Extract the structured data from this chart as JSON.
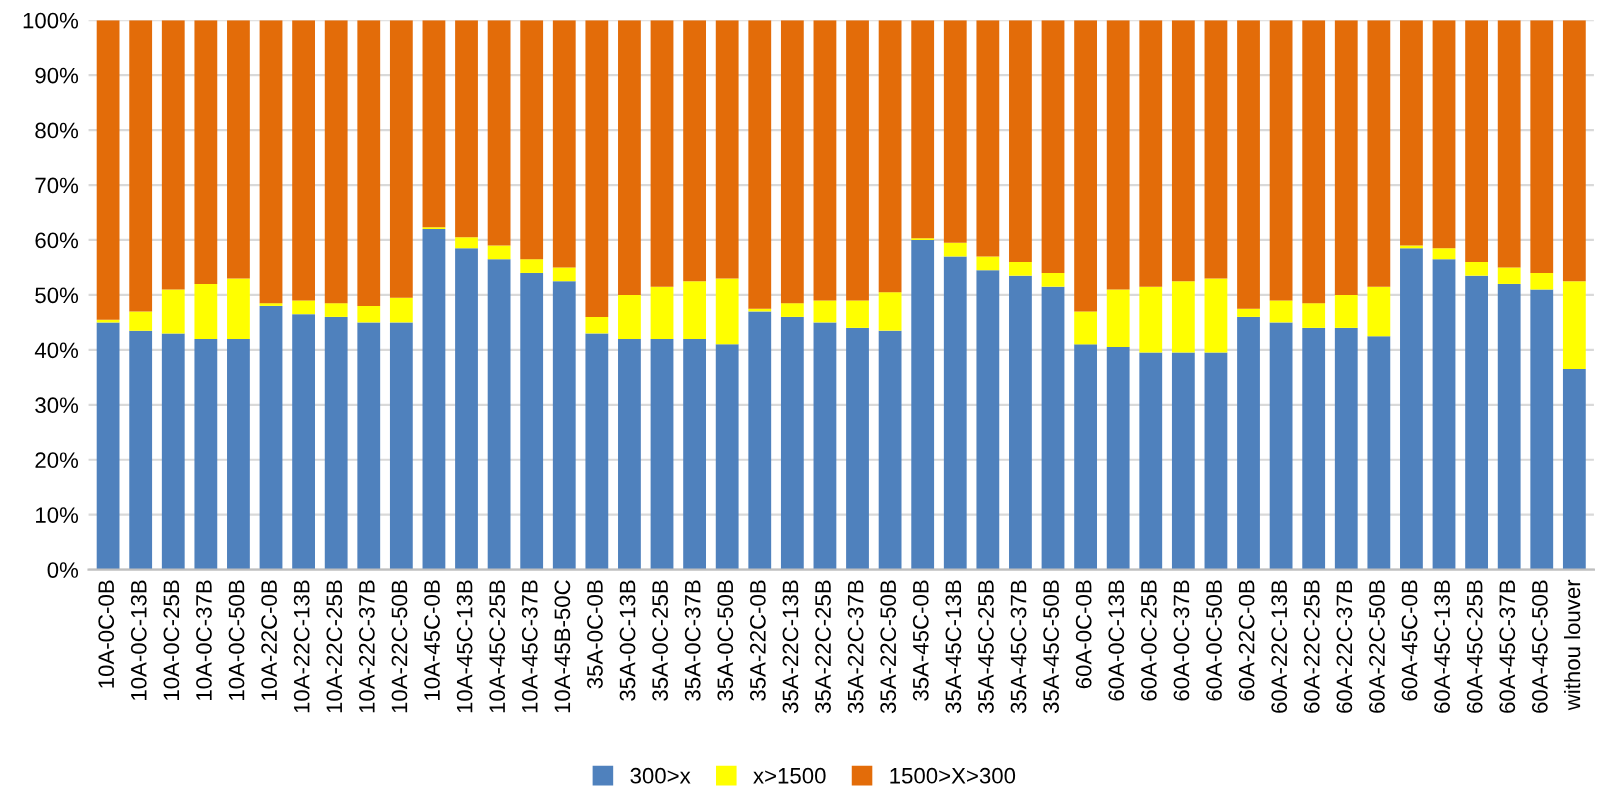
{
  "chart_data": {
    "type": "bar",
    "stacked": true,
    "categories": [
      "10A-0C-0B",
      "10A-0C-13B",
      "10A-0C-25B",
      "10A-0C-37B",
      "10A-0C-50B",
      "10A-22C-0B",
      "10A-22C-13B",
      "10A-22C-25B",
      "10A-22C-37B",
      "10A-22C-50B",
      "10A-45C-0B",
      "10A-45C-13B",
      "10A-45C-25B",
      "10A-45C-37B",
      "10A-45B-50C",
      "35A-0C-0B",
      "35A-0C-13B",
      "35A-0C-25B",
      "35A-0C-37B",
      "35A-0C-50B",
      "35A-22C-0B",
      "35A-22C-13B",
      "35A-22C-25B",
      "35A-22C-37B",
      "35A-22C-50B",
      "35A-45C-0B",
      "35A-45C-13B",
      "35A-45C-25B",
      "35A-45C-37B",
      "35A-45C-50B",
      "60A-0C-0B",
      "60A-0C-13B",
      "60A-0C-25B",
      "60A-0C-37B",
      "60A-0C-50B",
      "60A-22C-0B",
      "60A-22C-13B",
      "60A-22C-25B",
      "60A-22C-37B",
      "60A-22C-50B",
      "60A-45C-0B",
      "60A-45C-13B",
      "60A-45C-25B",
      "60A-45C-37B",
      "60A-45C-50B",
      "withou louver"
    ],
    "series": [
      {
        "name": "300>x",
        "color": "#4f81bd",
        "values": [
          45,
          43.5,
          43,
          42,
          42,
          48,
          46.5,
          46,
          45,
          45,
          62,
          58.5,
          56.5,
          54,
          52.5,
          43,
          42,
          42,
          42,
          41,
          47,
          46,
          45,
          44,
          43.5,
          60,
          57,
          54.5,
          53.5,
          51.5,
          41,
          40.5,
          39.5,
          39.5,
          39.5,
          46,
          45,
          44,
          44,
          42.5,
          58.5,
          56.5,
          53.5,
          52,
          51,
          36.5
        ]
      },
      {
        "name": "x>1500",
        "color": "#ffff00",
        "values": [
          0.5,
          3.5,
          8,
          10,
          11,
          0.5,
          2.5,
          2.5,
          3,
          4.5,
          0.3,
          2,
          2.5,
          2.5,
          2.5,
          3,
          8,
          9.5,
          10.5,
          12,
          0.5,
          2.5,
          4,
          5,
          7,
          0.3,
          2.5,
          2.5,
          2.5,
          2.5,
          6,
          10.5,
          12,
          13,
          13.5,
          1.5,
          4,
          4.5,
          6,
          9,
          0.5,
          2,
          2.5,
          3,
          3,
          16
        ]
      },
      {
        "name": "1500>X>300",
        "color": "#e36c09",
        "values": [
          54.5,
          53,
          49,
          48,
          47,
          51.5,
          51,
          51.5,
          52,
          50.5,
          37.7,
          39.5,
          41,
          43.5,
          45,
          54,
          50,
          48.5,
          47.5,
          47,
          52.5,
          51.5,
          51,
          51,
          49.5,
          39.7,
          40.5,
          43,
          44,
          46,
          53,
          49,
          48.5,
          47.5,
          47,
          52.5,
          51,
          51.5,
          50,
          48.5,
          41,
          41.5,
          44,
          45,
          46,
          47.5
        ]
      }
    ],
    "ylim": [
      0,
      100
    ],
    "yticks": [
      {
        "value": 0,
        "label": "0%"
      },
      {
        "value": 10,
        "label": "10%"
      },
      {
        "value": 20,
        "label": "20%"
      },
      {
        "value": 30,
        "label": "30%"
      },
      {
        "value": 40,
        "label": "40%"
      },
      {
        "value": 50,
        "label": "50%"
      },
      {
        "value": 60,
        "label": "60%"
      },
      {
        "value": 70,
        "label": "70%"
      },
      {
        "value": 80,
        "label": "80%"
      },
      {
        "value": 90,
        "label": "90%"
      },
      {
        "value": 100,
        "label": "100%"
      }
    ],
    "grid": "y",
    "legend": "bottom"
  }
}
